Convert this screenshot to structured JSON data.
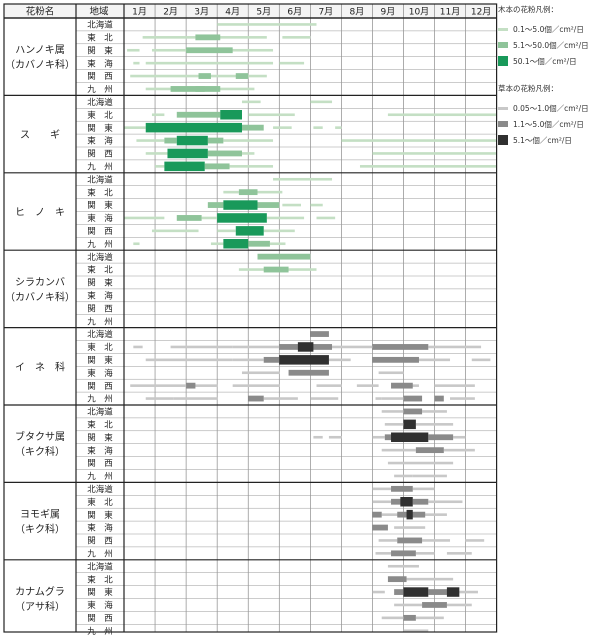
{
  "chart_data": {
    "type": "heatmap",
    "header": {
      "pollen": "花粉名",
      "region": "地域"
    },
    "months": [
      "1月",
      "2月",
      "3月",
      "4月",
      "5月",
      "6月",
      "7月",
      "8月",
      "9月",
      "10月",
      "11月",
      "12月"
    ],
    "regions": [
      "北海道",
      "東　北",
      "関　東",
      "東　海",
      "関　西",
      "九　州"
    ],
    "pollen": [
      {
        "name": [
          "ハンノキ属",
          "（カバノキ科）"
        ],
        "kind": "tree",
        "rows": [
          [
            [
              3.0,
              6.2,
              1
            ]
          ],
          [
            [
              0.6,
              4.6,
              1
            ],
            [
              2.3,
              3.1,
              2
            ],
            [
              5.1,
              6.0,
              1
            ]
          ],
          [
            [
              0.1,
              0.5,
              1
            ],
            [
              0.9,
              4.8,
              1
            ],
            [
              2.0,
              3.5,
              2
            ]
          ],
          [
            [
              0.7,
              4.8,
              1
            ],
            [
              0.3,
              0.5,
              1
            ],
            [
              5.0,
              5.8,
              1
            ]
          ],
          [
            [
              0.2,
              4.6,
              1
            ],
            [
              2.4,
              2.8,
              2
            ],
            [
              3.6,
              4.0,
              2
            ]
          ],
          [
            [
              0.7,
              4.2,
              1
            ],
            [
              1.5,
              3.1,
              2
            ],
            [
              2.3,
              2.6,
              2
            ]
          ]
        ]
      },
      {
        "name": [
          "ス　　ギ"
        ],
        "kind": "tree",
        "rows": [
          [
            [
              3.8,
              4.4,
              1
            ],
            [
              6.0,
              6.7,
              1
            ]
          ],
          [
            [
              0.9,
              1.3,
              1
            ],
            [
              1.7,
              3.1,
              2
            ],
            [
              3.1,
              3.8,
              3
            ],
            [
              4.0,
              5.5,
              1
            ],
            [
              8.5,
              12.0,
              1
            ]
          ],
          [
            [
              0.0,
              0.7,
              1
            ],
            [
              0.7,
              3.8,
              3
            ],
            [
              3.8,
              4.5,
              2
            ],
            [
              4.8,
              5.4,
              1
            ],
            [
              6.1,
              6.4,
              1
            ],
            [
              6.8,
              7.0,
              1
            ]
          ],
          [
            [
              0.4,
              1.3,
              1
            ],
            [
              1.3,
              1.7,
              2
            ],
            [
              1.7,
              2.7,
              3
            ],
            [
              2.7,
              3.2,
              2
            ],
            [
              3.2,
              4.8,
              1
            ],
            [
              7.0,
              12.0,
              1
            ]
          ],
          [
            [
              0.7,
              1.4,
              1
            ],
            [
              1.4,
              2.7,
              3
            ],
            [
              2.7,
              3.8,
              2
            ],
            [
              3.8,
              4.2,
              1
            ],
            [
              8.0,
              12.0,
              1
            ]
          ],
          [
            [
              1.0,
              1.3,
              1
            ],
            [
              1.3,
              2.6,
              3
            ],
            [
              2.6,
              3.4,
              2
            ],
            [
              3.4,
              4.8,
              1
            ],
            [
              7.6,
              12.0,
              1
            ]
          ]
        ]
      },
      {
        "name": [
          "ヒ　ノ　キ"
        ],
        "kind": "tree",
        "rows": [
          [
            [
              4.8,
              6.7,
              1
            ]
          ],
          [
            [
              3.2,
              3.7,
              1
            ],
            [
              3.7,
              4.3,
              2
            ],
            [
              4.3,
              5.1,
              1
            ]
          ],
          [
            [
              2.7,
              3.2,
              2
            ],
            [
              3.2,
              4.3,
              3
            ],
            [
              4.3,
              5.0,
              2
            ],
            [
              5.1,
              5.7,
              1
            ],
            [
              6.0,
              6.4,
              1
            ]
          ],
          [
            [
              0.0,
              1.3,
              1
            ],
            [
              1.7,
              2.5,
              2
            ],
            [
              2.5,
              3.0,
              1
            ],
            [
              3.0,
              4.6,
              3
            ],
            [
              4.6,
              5.8,
              1
            ],
            [
              6.2,
              6.8,
              1
            ]
          ],
          [
            [
              0.9,
              2.4,
              1
            ],
            [
              3.0,
              3.6,
              1
            ],
            [
              3.6,
              4.5,
              3
            ],
            [
              4.5,
              5.5,
              1
            ]
          ],
          [
            [
              0.3,
              0.5,
              1
            ],
            [
              2.8,
              3.2,
              1
            ],
            [
              3.2,
              4.0,
              3
            ],
            [
              4.0,
              4.7,
              2
            ],
            [
              4.7,
              5.2,
              1
            ]
          ]
        ]
      },
      {
        "name": [
          "シラカンバ",
          "（カバノキ科）"
        ],
        "kind": "tree",
        "rows": [
          [
            [
              4.3,
              6.0,
              2
            ]
          ],
          [
            [
              3.7,
              6.2,
              1
            ],
            [
              4.5,
              5.3,
              2
            ]
          ],
          [],
          [],
          [],
          []
        ]
      },
      {
        "name": [
          "イ　ネ　科"
        ],
        "kind": "herb",
        "rows": [
          [
            [
              6.0,
              6.6,
              2
            ]
          ],
          [
            [
              0.3,
              0.6,
              1
            ],
            [
              1.5,
              3.5,
              1
            ],
            [
              3.5,
              5.0,
              1
            ],
            [
              5.0,
              6.0,
              2
            ],
            [
              5.6,
              6.1,
              3
            ],
            [
              6.0,
              6.7,
              2
            ],
            [
              6.7,
              8.0,
              1
            ],
            [
              8.0,
              9.8,
              2
            ],
            [
              9.8,
              11.5,
              1
            ]
          ],
          [
            [
              0.7,
              3.5,
              1
            ],
            [
              3.5,
              4.5,
              1
            ],
            [
              4.5,
              5.0,
              2
            ],
            [
              5.0,
              6.6,
              3
            ],
            [
              6.6,
              7.3,
              1
            ],
            [
              8.0,
              9.5,
              2
            ],
            [
              9.5,
              10.5,
              1
            ],
            [
              11.2,
              11.8,
              1
            ]
          ],
          [
            [
              3.8,
              5.0,
              1
            ],
            [
              5.3,
              6.6,
              2
            ],
            [
              8.2,
              9.0,
              1
            ]
          ],
          [
            [
              0.2,
              3.0,
              1
            ],
            [
              2.0,
              2.3,
              2
            ],
            [
              3.5,
              5.0,
              1
            ],
            [
              6.2,
              7.0,
              1
            ],
            [
              7.5,
              8.2,
              1
            ],
            [
              8.6,
              9.3,
              2
            ],
            [
              9.2,
              9.5,
              1
            ],
            [
              10.0,
              11.3,
              1
            ]
          ],
          [
            [
              0.7,
              1.6,
              1
            ],
            [
              1.6,
              3.0,
              1
            ],
            [
              4.0,
              4.5,
              2
            ],
            [
              4.5,
              5.6,
              1
            ],
            [
              6.0,
              6.9,
              1
            ],
            [
              8.1,
              8.3,
              1
            ],
            [
              8.3,
              9.0,
              1
            ],
            [
              9.0,
              9.6,
              2
            ],
            [
              10.0,
              10.3,
              2
            ],
            [
              10.5,
              11.3,
              1
            ]
          ]
        ]
      },
      {
        "name": [
          "ブタクサ属",
          "（キク科）"
        ],
        "kind": "herb",
        "rows": [
          [
            [
              8.3,
              9.0,
              1
            ],
            [
              9.0,
              9.6,
              2
            ],
            [
              9.6,
              10.4,
              1
            ]
          ],
          [
            [
              8.4,
              9.0,
              1
            ],
            [
              9.0,
              9.4,
              3
            ],
            [
              9.4,
              10.6,
              1
            ]
          ],
          [
            [
              6.1,
              6.4,
              1
            ],
            [
              6.6,
              7.0,
              1
            ],
            [
              8.0,
              8.4,
              1
            ],
            [
              8.4,
              9.0,
              2
            ],
            [
              8.6,
              9.8,
              3
            ],
            [
              9.8,
              10.6,
              2
            ],
            [
              10.6,
              11.0,
              1
            ]
          ],
          [
            [
              8.3,
              9.4,
              1
            ],
            [
              9.4,
              10.3,
              2
            ],
            [
              10.3,
              11.3,
              1
            ]
          ],
          [
            [
              8.5,
              9.5,
              1
            ],
            [
              9.5,
              10.6,
              1
            ]
          ],
          [
            [
              8.7,
              9.3,
              1
            ],
            [
              9.3,
              10.4,
              1
            ]
          ]
        ]
      },
      {
        "name": [
          "ヨモギ属",
          "（キク科）"
        ],
        "kind": "herb",
        "rows": [
          [
            [
              8.0,
              8.6,
              1
            ],
            [
              8.6,
              9.3,
              2
            ],
            [
              9.3,
              10.0,
              1
            ]
          ],
          [
            [
              8.0,
              8.6,
              1
            ],
            [
              8.6,
              9.0,
              2
            ],
            [
              8.9,
              9.3,
              3
            ],
            [
              9.3,
              9.8,
              2
            ],
            [
              9.8,
              10.9,
              1
            ]
          ],
          [
            [
              8.0,
              8.3,
              2
            ],
            [
              8.3,
              8.9,
              1
            ],
            [
              9.1,
              9.3,
              3
            ],
            [
              8.8,
              9.7,
              2
            ],
            [
              9.6,
              10.4,
              1
            ]
          ],
          [
            [
              8.0,
              8.5,
              2
            ],
            [
              8.7,
              9.7,
              1
            ]
          ],
          [
            [
              8.2,
              8.8,
              1
            ],
            [
              8.8,
              9.6,
              2
            ],
            [
              9.6,
              10.5,
              1
            ],
            [
              11.0,
              11.6,
              1
            ]
          ],
          [
            [
              8.1,
              8.6,
              1
            ],
            [
              8.6,
              9.4,
              2
            ],
            [
              9.4,
              10.0,
              1
            ],
            [
              10.4,
              11.2,
              1
            ]
          ]
        ]
      },
      {
        "name": [
          "カナムグラ",
          "（アサ科）"
        ],
        "kind": "herb",
        "rows": [
          [
            [
              8.5,
              9.5,
              1
            ]
          ],
          [
            [
              8.5,
              9.1,
              2
            ],
            [
              9.1,
              10.6,
              1
            ]
          ],
          [
            [
              8.0,
              8.4,
              1
            ],
            [
              8.7,
              9.0,
              2
            ],
            [
              9.0,
              9.8,
              3
            ],
            [
              9.8,
              10.6,
              2
            ],
            [
              10.4,
              10.8,
              3
            ],
            [
              10.8,
              11.4,
              1
            ]
          ],
          [
            [
              8.7,
              9.6,
              1
            ],
            [
              9.6,
              10.4,
              2
            ],
            [
              10.4,
              11.2,
              1
            ]
          ],
          [
            [
              8.3,
              9.0,
              1
            ],
            [
              9.0,
              9.4,
              2
            ],
            [
              9.4,
              10.3,
              1
            ]
          ],
          [
            [
              9.0,
              9.8,
              1
            ]
          ]
        ]
      }
    ]
  },
  "legend": {
    "tree_title": "木本の花粉凡例：",
    "tree_items": [
      {
        "label": "0.1～5.0個／cm²/日",
        "color": "#c4dfc4",
        "h": 3
      },
      {
        "label": "5.1～50.0個／cm²/日",
        "color": "#8fc49a",
        "h": 6
      },
      {
        "label": "50.1～個／cm²/日",
        "color": "#19995a",
        "h": 10
      }
    ],
    "herb_title": "草本の花粉凡例：",
    "herb_items": [
      {
        "label": "0.05～1.0個／cm²/日",
        "color": "#c8c8c8",
        "h": 3
      },
      {
        "label": "1.1～5.0個／cm²/日",
        "color": "#8a8a8a",
        "h": 6
      },
      {
        "label": "5.1～個／cm²/日",
        "color": "#303030",
        "h": 10
      }
    ]
  },
  "colors": {
    "tree": [
      "#c4dfc4",
      "#8fc49a",
      "#19995a"
    ],
    "herb": [
      "#c8c8c8",
      "#8a8a8a",
      "#303030"
    ]
  }
}
